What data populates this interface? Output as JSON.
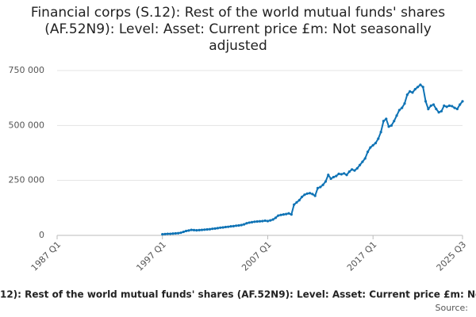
{
  "chart_data": {
    "type": "line",
    "title": "Financial corps (S.12): Rest of the world mutual funds' shares (AF.52N9): Level: Asset: Current price £m: Not seasonally adjusted",
    "source": "Source:",
    "x": [
      1997,
      1997.25,
      1997.5,
      1997.75,
      1998,
      1998.25,
      1998.5,
      1998.75,
      1999,
      1999.25,
      1999.5,
      1999.75,
      2000,
      2000.25,
      2000.5,
      2000.75,
      2001,
      2001.25,
      2001.5,
      2001.75,
      2002,
      2002.25,
      2002.5,
      2002.75,
      2003,
      2003.25,
      2003.5,
      2003.75,
      2004,
      2004.25,
      2004.5,
      2004.75,
      2005,
      2005.25,
      2005.5,
      2005.75,
      2006,
      2006.25,
      2006.5,
      2006.75,
      2007,
      2007.25,
      2007.5,
      2007.75,
      2008,
      2008.25,
      2008.5,
      2008.75,
      2009,
      2009.25,
      2009.5,
      2009.75,
      2010,
      2010.25,
      2010.5,
      2010.75,
      2011,
      2011.25,
      2011.5,
      2011.75,
      2012,
      2012.25,
      2012.5,
      2012.75,
      2013,
      2013.25,
      2013.5,
      2013.75,
      2014,
      2014.25,
      2014.5,
      2014.75,
      2015,
      2015.25,
      2015.5,
      2015.75,
      2016,
      2016.25,
      2016.5,
      2016.75,
      2017,
      2017.25,
      2017.5,
      2017.75,
      2018,
      2018.25,
      2018.5,
      2018.75,
      2019,
      2019.25,
      2019.5,
      2019.75,
      2020,
      2020.25,
      2020.5,
      2020.75,
      2021,
      2021.25,
      2021.5,
      2021.75,
      2022,
      2022.25,
      2022.5,
      2022.75,
      2023,
      2023.25,
      2023.5,
      2023.75,
      2024,
      2024.25,
      2024.5,
      2024.75,
      2025,
      2025.25,
      2025.5
    ],
    "series": [
      {
        "name": "Financial corps (S.12): Rest of the world mutual funds' shares (AF.52N9): Level: Asset: Current price £m: Not seasonally adjusted",
        "color": "#0f73b5",
        "values": [
          5000,
          6000,
          7000,
          7000,
          8000,
          9000,
          10000,
          12000,
          16000,
          20000,
          22000,
          25000,
          24000,
          23000,
          24000,
          25000,
          26000,
          27000,
          28000,
          30000,
          31000,
          33000,
          35000,
          36000,
          38000,
          39000,
          41000,
          42000,
          44000,
          45000,
          47000,
          50000,
          55000,
          58000,
          60000,
          62000,
          63000,
          64000,
          65000,
          67000,
          65000,
          68000,
          72000,
          80000,
          90000,
          93000,
          95000,
          97000,
          100000,
          95000,
          140000,
          150000,
          160000,
          175000,
          185000,
          190000,
          192000,
          188000,
          180000,
          215000,
          220000,
          230000,
          245000,
          275000,
          258000,
          265000,
          270000,
          280000,
          278000,
          282000,
          275000,
          290000,
          300000,
          295000,
          305000,
          320000,
          335000,
          350000,
          380000,
          400000,
          410000,
          420000,
          440000,
          470000,
          520000,
          530000,
          495000,
          500000,
          520000,
          545000,
          570000,
          580000,
          600000,
          640000,
          655000,
          650000,
          665000,
          675000,
          685000,
          675000,
          610000,
          575000,
          590000,
          595000,
          575000,
          560000,
          565000,
          590000,
          585000,
          590000,
          588000,
          580000,
          575000,
          595000,
          610000
        ]
      }
    ],
    "xlim": [
      1987,
      2025.5
    ],
    "xticks": [
      {
        "value": 1987,
        "label": "1987 Q1"
      },
      {
        "value": 1997,
        "label": "1997 Q1"
      },
      {
        "value": 2007,
        "label": "2007 Q1"
      },
      {
        "value": 2017,
        "label": "2017 Q1"
      },
      {
        "value": 2025.5,
        "label": "2025 Q3"
      }
    ],
    "ylim": [
      0,
      750000
    ],
    "yticks": [
      0,
      {
        "value": 250000,
        "label": "250 000"
      },
      {
        "value": 500000,
        "label": "500 000"
      },
      {
        "value": 750000,
        "label": "750 000"
      }
    ],
    "grid": true
  }
}
